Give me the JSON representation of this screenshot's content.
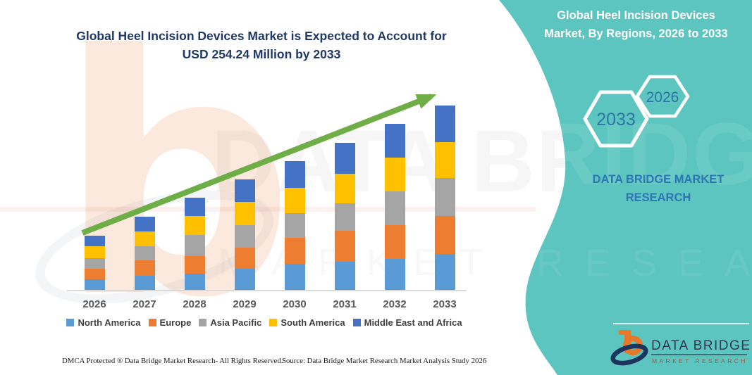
{
  "title": {
    "line1": "Global Heel Incision Devices Market is Expected to Account for",
    "line2": "USD 254.24 Million by 2033"
  },
  "side_panel": {
    "title_line1": "Global Heel Incision Devices",
    "title_line2": "Market, By Regions, 2026 to 2033",
    "hexagons": [
      {
        "label": "2033"
      },
      {
        "label": "2026"
      }
    ],
    "brand_text": "DATA BRIDGE MARKET RESEARCH",
    "accent_teal": "#5CC5BF",
    "hex_label_color": "#2E74A6",
    "brand_text_color": "#2E74B6"
  },
  "watermark": {
    "big_letter": "b",
    "line1": "DATA BRIDGE",
    "line2": "MARKET RESEARCH"
  },
  "chart_data": {
    "type": "bar",
    "stacked": true,
    "title": "Global Heel Incision Devices Market is Expected to Account for USD 254.24 Million by 2033",
    "unit": "USD Million",
    "categories": [
      "2026",
      "2027",
      "2028",
      "2029",
      "2030",
      "2031",
      "2032",
      "2033"
    ],
    "series": [
      {
        "name": "North America",
        "color": "#5B9BD5",
        "values": [
          14.5,
          19.4,
          22.3,
          29.1,
          35.8,
          38.7,
          42.6,
          49.4
        ]
      },
      {
        "name": "Europe",
        "color": "#ED7D31",
        "values": [
          14.5,
          21.3,
          24.2,
          29.1,
          35.8,
          42.6,
          46.5,
          52.6
        ]
      },
      {
        "name": "Asia Pacific",
        "color": "#A5A5A5",
        "values": [
          14.5,
          19.4,
          29.1,
          31.0,
          33.9,
          37.8,
          46.5,
          52.6
        ]
      },
      {
        "name": "South America",
        "color": "#FFC000",
        "values": [
          17.0,
          20.3,
          26.2,
          32.0,
          34.9,
          40.7,
          46.5,
          48.8
        ]
      },
      {
        "name": "Middle East and Africa",
        "color": "#4472C4",
        "values": [
          14.6,
          20.8,
          25.2,
          31.0,
          36.8,
          43.1,
          46.5,
          50.8
        ]
      }
    ],
    "totals": [
      75.1,
      101.2,
      127.0,
      152.2,
      177.2,
      202.9,
      228.6,
      254.24
    ],
    "final_value_label": "USD 254.24 Million by 2033",
    "trend_arrow": true,
    "arrow_color": "#6FAE46",
    "legend_position": "bottom",
    "gridlines": false,
    "y_axis_visible": false,
    "x_axis_color": "#D9D9D9"
  },
  "footer": {
    "left": "DMCA Protected ® Data Bridge Market Research-  All Rights Reserved.",
    "right": "Source: Data Bridge Market Research  Market Analysis Study 2026"
  },
  "logo": {
    "brand": "DATA BRIDGE",
    "tagline": "MARKET RESEARCH"
  }
}
